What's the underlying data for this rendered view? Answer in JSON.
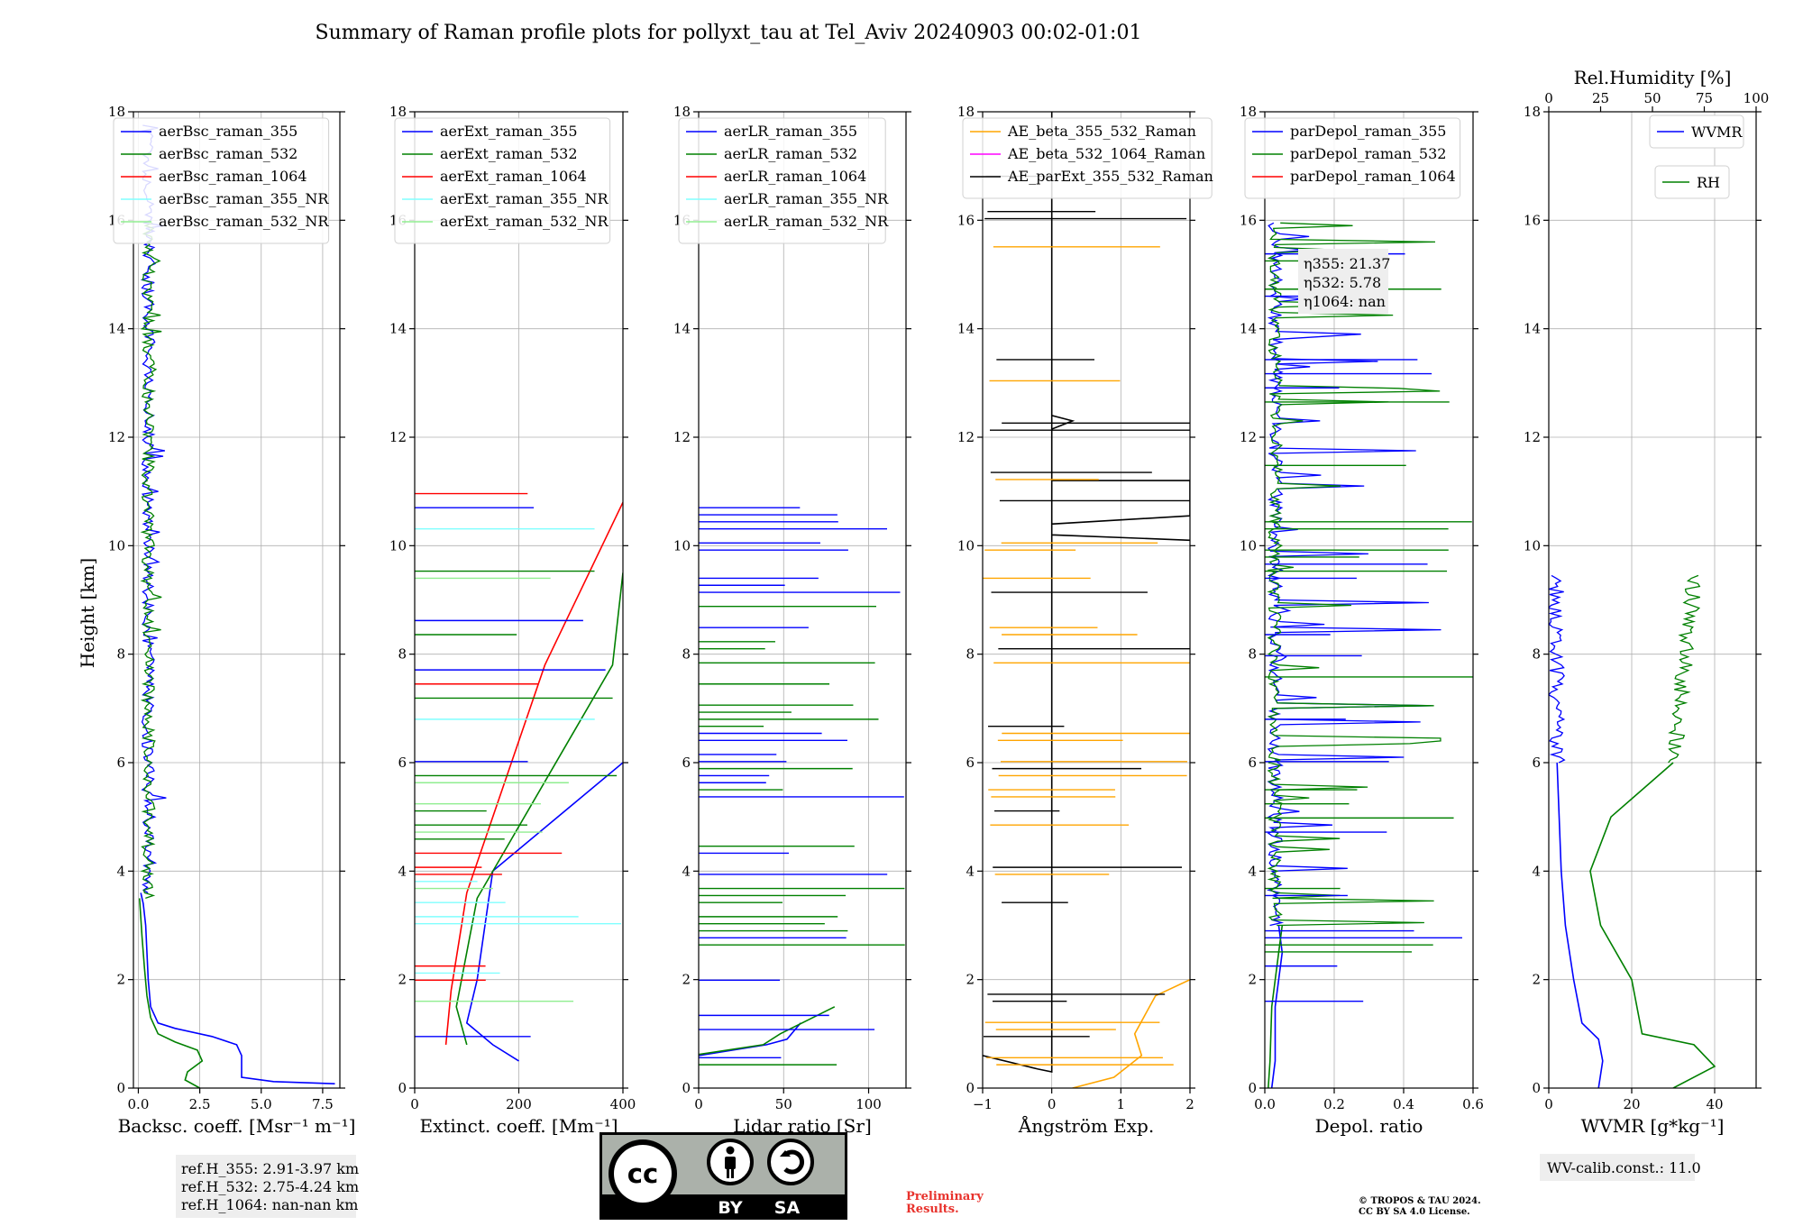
{
  "figure": {
    "title": "Summary of Raman profile plots for pollyxt_tau at Tel_Aviv 20240903 00:02-01:01",
    "ylabel": "Height [km]",
    "preliminary_line1": "Preliminary",
    "preliminary_line2": "Results.",
    "copyright_line1": "© TROPOS & TAU 2024.",
    "copyright_line2": "CC BY SA 4.0 License.",
    "cc_badge": {
      "main": "cc",
      "by": "BY",
      "sa": "SA",
      "icons": [
        "cc-icon",
        "person-icon",
        "share-alike-icon"
      ]
    },
    "colors": {
      "blue": "#0000ff",
      "green": "#008000",
      "red": "#ff0000",
      "cyan": "#80ffff",
      "lightgreen": "#90ee90",
      "orange": "#ffa500",
      "magenta": "#ff00ff",
      "black": "#000000"
    }
  },
  "chart_data": [
    {
      "type": "line",
      "id": "bsc",
      "xlabel": "Backsc. coeff. [Msr⁻¹ m⁻¹]",
      "ylabel": "Height [km]",
      "xlim": [
        -0.2,
        8.2
      ],
      "ylim": [
        0,
        18
      ],
      "xticks": [
        0,
        2.5,
        5.0,
        7.5
      ],
      "xtick_labels": [
        "0.0",
        "2.5",
        "5.0",
        "7.5"
      ],
      "yticks": [
        0,
        2,
        4,
        6,
        8,
        10,
        12,
        14,
        16,
        18
      ],
      "ytick_labels": [
        "0",
        "2",
        "4",
        "6",
        "8",
        "10",
        "12",
        "14",
        "16",
        "18"
      ],
      "legend": {
        "position": "top-left",
        "entries": [
          {
            "name": "aerBsc_raman_355",
            "color": "#0000ff"
          },
          {
            "name": "aerBsc_raman_532",
            "color": "#008000"
          },
          {
            "name": "aerBsc_raman_1064",
            "color": "#ff0000"
          },
          {
            "name": "aerBsc_raman_355_NR",
            "color": "#80ffff"
          },
          {
            "name": "aerBsc_raman_532_NR",
            "color": "#90ee90"
          }
        ]
      },
      "annotations": [
        "ref.H_355: 2.91-3.97 km",
        "ref.H_532: 2.75-4.24 km",
        "ref.H_1064: nan-nan km"
      ],
      "series": [
        {
          "name": "aerBsc_raman_355",
          "color": "#0000ff",
          "shape": "bsc355",
          "points": [
            [
              8.0,
              0.08
            ],
            [
              5.5,
              0.12
            ],
            [
              4.2,
              0.2
            ],
            [
              4.2,
              0.6
            ],
            [
              4.0,
              0.8
            ],
            [
              3.0,
              0.95
            ],
            [
              1.5,
              1.1
            ],
            [
              0.8,
              1.2
            ],
            [
              0.5,
              1.5
            ],
            [
              0.4,
              2.0
            ],
            [
              0.35,
              2.5
            ],
            [
              0.3,
              3.0
            ],
            [
              0.2,
              3.4
            ],
            [
              0.1,
              3.6
            ]
          ]
        },
        {
          "name": "aerBsc_raman_532",
          "color": "#008000",
          "shape": "bsc532",
          "points": [
            [
              2.5,
              0.0
            ],
            [
              1.9,
              0.15
            ],
            [
              2.0,
              0.3
            ],
            [
              2.6,
              0.5
            ],
            [
              2.4,
              0.7
            ],
            [
              1.5,
              0.85
            ],
            [
              0.8,
              1.0
            ],
            [
              0.5,
              1.3
            ],
            [
              0.35,
              1.7
            ],
            [
              0.25,
              2.2
            ],
            [
              0.15,
              2.8
            ],
            [
              0.05,
              3.5
            ]
          ]
        },
        {
          "name": "aerBsc_raman_355_NR",
          "color": "#80ffff",
          "points": []
        },
        {
          "name": "aerBsc_raman_532_NR",
          "color": "#90ee90",
          "points": []
        }
      ]
    },
    {
      "type": "line",
      "id": "ext",
      "xlabel": "Extinct. coeff. [Mm⁻¹]",
      "ylabel": "Height [km]",
      "xlim": [
        0,
        400
      ],
      "ylim": [
        0,
        18
      ],
      "xticks": [
        0,
        200,
        400
      ],
      "xtick_labels": [
        "0",
        "200",
        "400"
      ],
      "yticks": [
        0,
        2,
        4,
        6,
        8,
        10,
        12,
        14,
        16,
        18
      ],
      "ytick_labels": [
        "0",
        "2",
        "4",
        "6",
        "8",
        "10",
        "12",
        "14",
        "16",
        "18"
      ],
      "legend": {
        "position": "top-left",
        "entries": [
          {
            "name": "aerExt_raman_355",
            "color": "#0000ff"
          },
          {
            "name": "aerExt_raman_532",
            "color": "#008000"
          },
          {
            "name": "aerExt_raman_1064",
            "color": "#ff0000"
          },
          {
            "name": "aerExt_raman_355_NR",
            "color": "#80ffff"
          },
          {
            "name": "aerExt_raman_532_NR",
            "color": "#90ee90"
          }
        ]
      },
      "series": [
        {
          "name": "aerExt_raman_355",
          "color": "#0000ff",
          "points": [
            [
              200,
              0.5
            ],
            [
              150,
              0.8
            ],
            [
              100,
              1.2
            ],
            [
              120,
              2.0
            ],
            [
              150,
              4.0
            ],
            [
              400,
              6.0
            ]
          ]
        },
        {
          "name": "aerExt_raman_532",
          "color": "#008000",
          "points": [
            [
              100,
              0.8
            ],
            [
              80,
              1.5
            ],
            [
              120,
              3.5
            ],
            [
              380,
              7.8
            ],
            [
              400,
              9.5
            ]
          ]
        },
        {
          "name": "aerExt_raman_1064",
          "color": "#ff0000",
          "points": [
            [
              60,
              0.8
            ],
            [
              70,
              1.8
            ],
            [
              100,
              3.6
            ],
            [
              250,
              7.8
            ],
            [
              400,
              10.8
            ]
          ]
        },
        {
          "name": "aerExt_raman_355_NR",
          "color": "#80ffff",
          "points": []
        },
        {
          "name": "aerExt_raman_532_NR",
          "color": "#90ee90",
          "points": []
        }
      ]
    },
    {
      "type": "line",
      "id": "lr",
      "xlabel": "Lidar ratio [Sr]",
      "ylabel": "Height [km]",
      "xlim": [
        0,
        122
      ],
      "ylim": [
        0,
        18
      ],
      "xticks": [
        0,
        50,
        100
      ],
      "xtick_labels": [
        "0",
        "50",
        "100"
      ],
      "yticks": [
        0,
        2,
        4,
        6,
        8,
        10,
        12,
        14,
        16,
        18
      ],
      "ytick_labels": [
        "0",
        "2",
        "4",
        "6",
        "8",
        "10",
        "12",
        "14",
        "16",
        "18"
      ],
      "legend": {
        "position": "top-left",
        "entries": [
          {
            "name": "aerLR_raman_355",
            "color": "#0000ff"
          },
          {
            "name": "aerLR_raman_532",
            "color": "#008000"
          },
          {
            "name": "aerLR_raman_1064",
            "color": "#ff0000"
          },
          {
            "name": "aerLR_raman_355_NR",
            "color": "#80ffff"
          },
          {
            "name": "aerLR_raman_532_NR",
            "color": "#90ee90"
          }
        ]
      },
      "series": [
        {
          "name": "aerLR_raman_355",
          "color": "#0000ff",
          "points": [
            [
              0,
              0.6
            ],
            [
              40,
              0.8
            ],
            [
              52,
              0.9
            ],
            [
              60,
              1.2
            ]
          ]
        },
        {
          "name": "aerLR_raman_532",
          "color": "#008000",
          "points": [
            [
              0,
              0.62
            ],
            [
              38,
              0.8
            ],
            [
              48,
              1.0
            ],
            [
              80,
              1.5
            ]
          ]
        }
      ]
    },
    {
      "type": "line",
      "id": "ae",
      "xlabel": "Ångström Exp.",
      "ylabel": "Height [km]",
      "xlim": [
        -1,
        2
      ],
      "ylim": [
        0,
        18
      ],
      "xticks": [
        -1,
        0,
        1,
        2
      ],
      "xtick_labels": [
        "−1",
        "0",
        "1",
        "2"
      ],
      "yticks": [
        0,
        2,
        4,
        6,
        8,
        10,
        12,
        14,
        16,
        18
      ],
      "ytick_labels": [
        "0",
        "2",
        "4",
        "6",
        "8",
        "10",
        "12",
        "14",
        "16",
        "18"
      ],
      "legend": {
        "position": "top-left",
        "entries": [
          {
            "name": "AE_beta_355_532_Raman",
            "color": "#ffa500"
          },
          {
            "name": "AE_beta_532_1064_Raman",
            "color": "#ff00ff"
          },
          {
            "name": "AE_parExt_355_532_Raman",
            "color": "#000000"
          }
        ]
      },
      "series": [
        {
          "name": "AE_beta_355_532_Raman",
          "color": "#ffa500",
          "points": [
            [
              0.3,
              0.0
            ],
            [
              0.9,
              0.2
            ],
            [
              1.3,
              0.6
            ],
            [
              1.2,
              1.0
            ],
            [
              1.5,
              1.7
            ],
            [
              2.0,
              2.0
            ]
          ]
        },
        {
          "name": "AE_parExt_355_532_Raman",
          "color": "#000000",
          "points": [
            [
              -1,
              0.6
            ],
            [
              -0.2,
              0.35
            ],
            [
              0,
              0.3
            ],
            [
              0,
              18
            ],
            [
              0,
              12.4
            ],
            [
              0.3,
              12.3
            ],
            [
              0,
              12.15
            ],
            [
              0,
              11.2
            ],
            [
              2,
              11.2
            ],
            [
              2,
              10.55
            ],
            [
              0,
              10.4
            ],
            [
              0,
              10.2
            ],
            [
              2,
              10.1
            ]
          ]
        }
      ]
    },
    {
      "type": "line",
      "id": "depol",
      "xlabel": "Depol. ratio",
      "ylabel": "Height [km]",
      "xlim": [
        0,
        0.6
      ],
      "ylim": [
        0,
        18
      ],
      "xticks": [
        0.0,
        0.2,
        0.4,
        0.6
      ],
      "xtick_labels": [
        "0.0",
        "0.2",
        "0.4",
        "0.6"
      ],
      "yticks": [
        0,
        2,
        4,
        6,
        8,
        10,
        12,
        14,
        16,
        18
      ],
      "ytick_labels": [
        "0",
        "2",
        "4",
        "6",
        "8",
        "10",
        "12",
        "14",
        "16",
        "18"
      ],
      "legend": {
        "position": "top-left",
        "entries": [
          {
            "name": "parDepol_raman_355",
            "color": "#0000ff"
          },
          {
            "name": "parDepol_raman_532",
            "color": "#008000"
          },
          {
            "name": "parDepol_raman_1064",
            "color": "#ff0000"
          }
        ]
      },
      "annotations": [
        "η355: 21.37",
        "η532: 5.78",
        "η1064: nan"
      ],
      "series": [
        {
          "name": "parDepol_raman_355",
          "color": "#0000ff",
          "points": [
            [
              0.02,
              0.0
            ],
            [
              0.03,
              0.5
            ],
            [
              0.03,
              1.5
            ],
            [
              0.05,
              2.5
            ],
            [
              0.04,
              3.0
            ]
          ]
        },
        {
          "name": "parDepol_raman_532",
          "color": "#008000",
          "points": [
            [
              0.01,
              0.0
            ],
            [
              0.015,
              0.5
            ],
            [
              0.02,
              1.5
            ],
            [
              0.04,
              2.5
            ],
            [
              0.05,
              3.0
            ]
          ]
        }
      ]
    },
    {
      "type": "line",
      "id": "wv",
      "xlabel": "WVMR [g*kg⁻¹]",
      "ylabel": "Height [km]",
      "xlim": [
        0,
        50
      ],
      "ylim": [
        0,
        18
      ],
      "xticks": [
        0,
        20,
        40
      ],
      "xtick_labels": [
        "0",
        "20",
        "40"
      ],
      "x2label": "Rel.Humidity [%]",
      "x2lim": [
        0,
        100
      ],
      "x2ticks": [
        0,
        25,
        50,
        75,
        100
      ],
      "x2tick_labels": [
        "0",
        "25",
        "50",
        "75",
        "100"
      ],
      "yticks": [
        0,
        2,
        4,
        6,
        8,
        10,
        12,
        14,
        16,
        18
      ],
      "ytick_labels": [
        "0",
        "2",
        "4",
        "6",
        "8",
        "10",
        "12",
        "14",
        "16",
        "18"
      ],
      "legend": {
        "position": "top-right",
        "entries": [
          {
            "name": "WVMR",
            "color": "#0000ff"
          },
          {
            "name": "RH",
            "color": "#008000"
          }
        ]
      },
      "annotations": [
        "WV-calib.const.: 11.0"
      ],
      "series": [
        {
          "name": "WVMR",
          "color": "#0000ff",
          "points": [
            [
              12,
              0.0
            ],
            [
              13,
              0.5
            ],
            [
              12,
              0.9
            ],
            [
              8,
              1.2
            ],
            [
              6,
              2.0
            ],
            [
              4,
              3.0
            ],
            [
              3,
              4.0
            ],
            [
              2.5,
              5.0
            ],
            [
              2,
              6.0
            ]
          ]
        },
        {
          "name": "RH",
          "color": "#008000",
          "points": [
            [
              60,
              0.0
            ],
            [
              80,
              0.4
            ],
            [
              70,
              0.8
            ],
            [
              45,
              1.0
            ],
            [
              40,
              2.0
            ],
            [
              25,
              3.0
            ],
            [
              20,
              4.0
            ],
            [
              30,
              5.0
            ],
            [
              60,
              6.0
            ]
          ]
        }
      ]
    }
  ]
}
